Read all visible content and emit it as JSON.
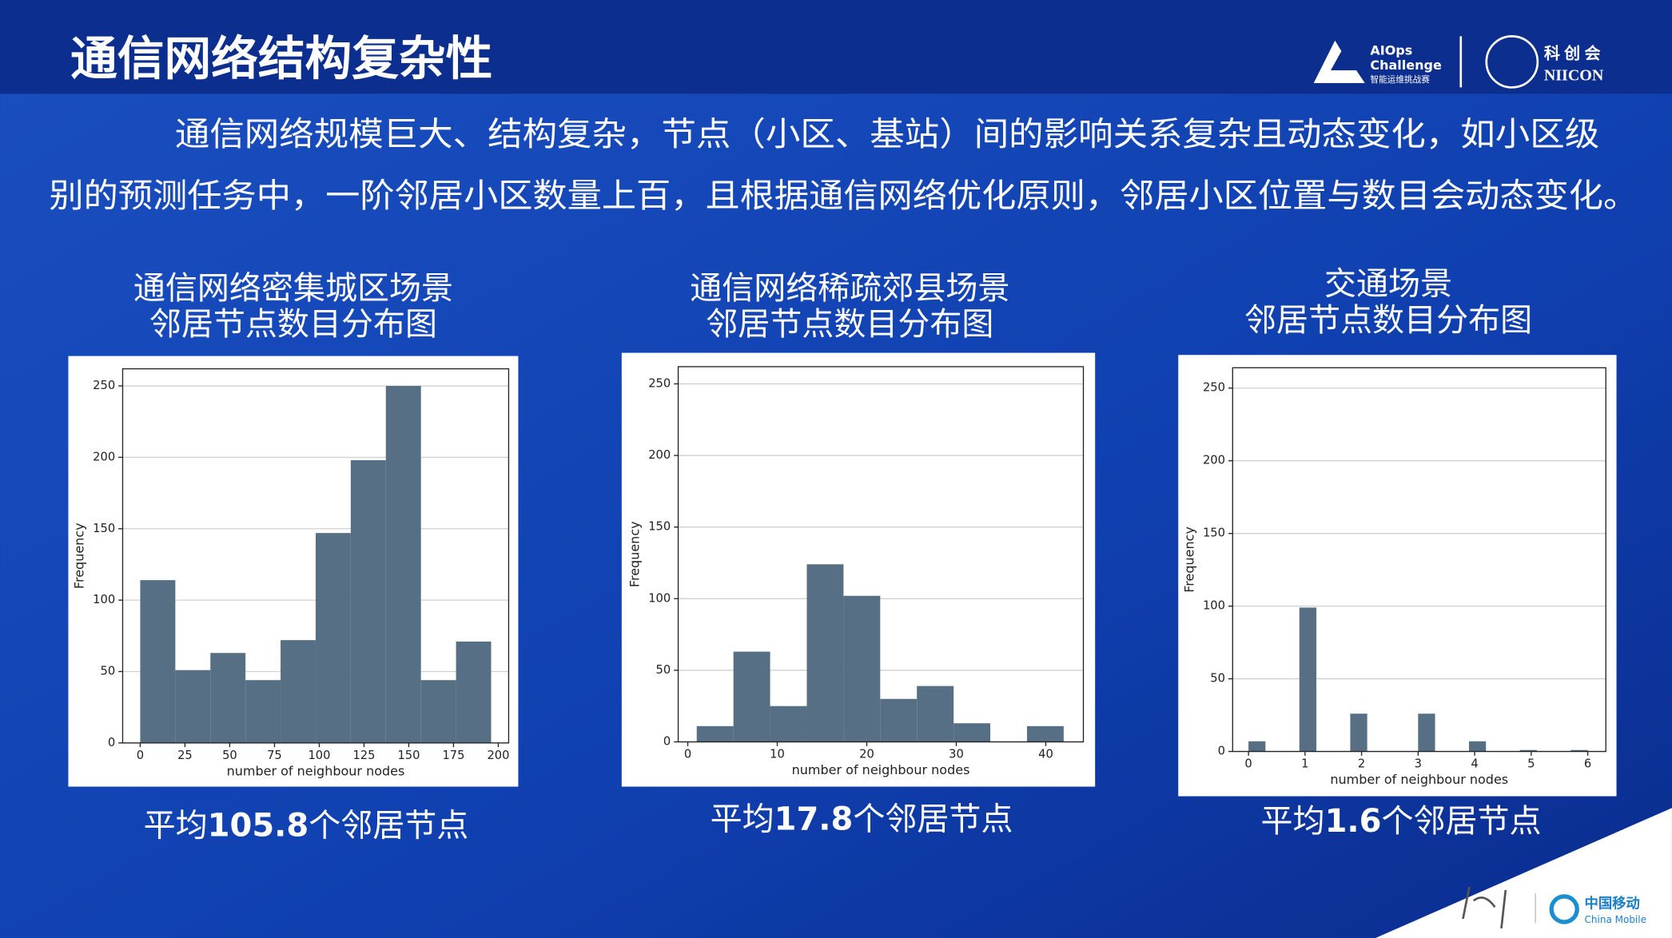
{
  "header": {
    "title": "通信网络结构复杂性",
    "paragraph": [
      "通信网络规模巨大、结构复杂，节点（小区、基站）间的影响关系复杂且动态变化，如小区级",
      "别的预测任务中，一阶邻居小区数量上百，且根据通信网络优化原则，邻居小区位置与数目会动态变化。"
    ],
    "logos": {
      "aiops": [
        "AIOps",
        "Challenge",
        "智能运维挑战赛"
      ],
      "niicon": [
        "科创会",
        "NIICON"
      ],
      "china_mobile": [
        "中国移动",
        "China Mobile"
      ]
    }
  },
  "chart_data": [
    {
      "type": "histogram",
      "title": [
        "通信网络密集城区场景",
        "邻居节点数目分布图"
      ],
      "bins": [
        0,
        19.6,
        39.2,
        58.8,
        78.4,
        98,
        117.6,
        137.2,
        156.8,
        176.4,
        196
      ],
      "values": [
        114,
        51,
        63,
        44,
        72,
        147,
        198,
        250,
        44,
        71
      ],
      "color": "#566f84",
      "xlabel": "number of neighbour nodes",
      "ylabel": "Frequency",
      "xlim": [
        -9.8,
        205.8
      ],
      "ylim": [
        0,
        262
      ],
      "xticks": [
        0,
        25,
        50,
        75,
        100,
        125,
        150,
        175,
        200
      ],
      "yticks": [
        0,
        50,
        100,
        150,
        200,
        250
      ],
      "grid": true,
      "note_prefix": "平均",
      "mean": 105.8,
      "note_suffix": "个邻居节点"
    },
    {
      "type": "histogram",
      "title": [
        "通信网络稀疏郊县场景",
        "邻居节点数目分布图"
      ],
      "bins": [
        1,
        5.1,
        9.2,
        13.3,
        17.4,
        21.5,
        25.6,
        29.7,
        33.8,
        37.9,
        42
      ],
      "values": [
        11,
        63,
        25,
        124,
        102,
        30,
        39,
        13,
        0,
        11
      ],
      "color": "#566f84",
      "xlabel": "number of neighbour nodes",
      "ylabel": "Frequency",
      "xlim": [
        -1.07,
        44.2
      ],
      "ylim": [
        0,
        262
      ],
      "xticks": [
        0,
        10,
        20,
        30,
        40
      ],
      "yticks": [
        0,
        50,
        100,
        150,
        200,
        250
      ],
      "grid": true,
      "note_prefix": "平均",
      "mean": 17.8,
      "note_suffix": "个邻居节点"
    },
    {
      "type": "histogram",
      "title": [
        "交通场景",
        "邻居节点数目分布图"
      ],
      "bins": [
        0,
        0.3,
        0.6,
        0.9,
        1.2,
        1.5,
        1.8,
        2.1,
        2.4,
        2.7,
        3.0,
        3.3,
        3.6,
        3.9,
        4.2,
        4.5,
        4.8,
        5.1,
        5.4,
        5.7,
        6.0
      ],
      "values": [
        7,
        0,
        0,
        99,
        0,
        0,
        26,
        0,
        0,
        0,
        26,
        0,
        0,
        7,
        0,
        0,
        1,
        0,
        0,
        1
      ],
      "color": "#566f84",
      "xlabel": "number of neighbour nodes",
      "ylabel": "Frequency",
      "xlim": [
        -0.28,
        6.32
      ],
      "ylim": [
        0,
        264
      ],
      "xticks": [
        0,
        1,
        2,
        3,
        4,
        5,
        6
      ],
      "yticks": [
        0,
        50,
        100,
        150,
        200,
        250
      ],
      "grid": true,
      "note_prefix": "平均",
      "mean": 1.6,
      "note_suffix": "个邻居节点"
    }
  ]
}
